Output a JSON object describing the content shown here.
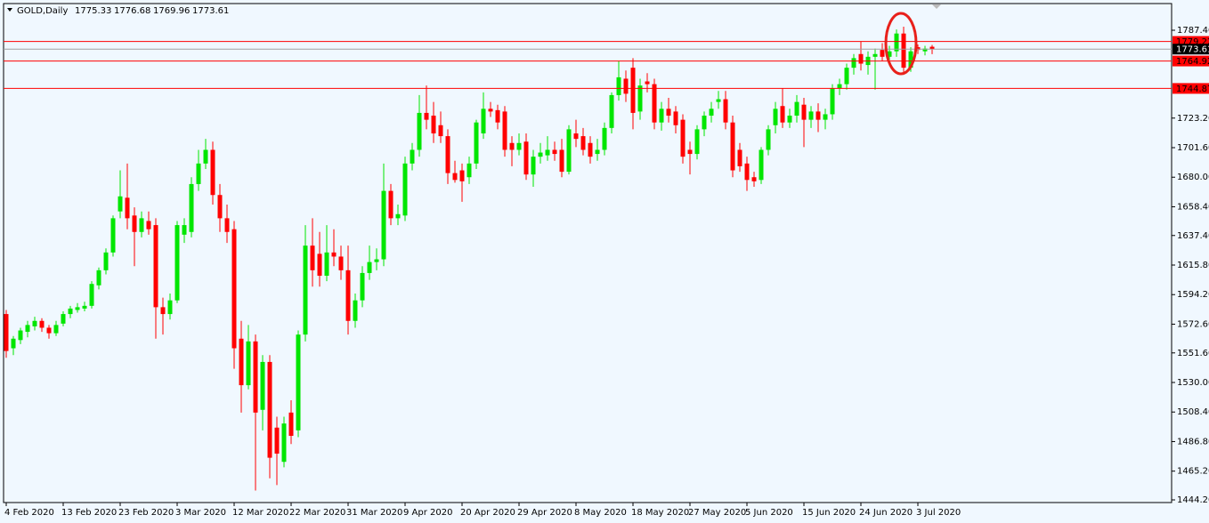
{
  "chart_data": {
    "type": "candlestick",
    "title": "GOLD,Daily",
    "categories": [
      "4 Feb 2020",
      null,
      null,
      null,
      null,
      null,
      null,
      null,
      "13 Feb 2020",
      null,
      null,
      null,
      null,
      null,
      null,
      null,
      "23 Feb 2020",
      null,
      null,
      null,
      null,
      null,
      null,
      null,
      "3 Mar 2020",
      null,
      null,
      null,
      null,
      null,
      null,
      null,
      "12 Mar 2020",
      null,
      null,
      null,
      null,
      null,
      null,
      null,
      "22 Mar 2020",
      null,
      null,
      null,
      null,
      null,
      null,
      null,
      "31 Mar 2020",
      null,
      null,
      null,
      null,
      null,
      null,
      null,
      "9 Apr 2020",
      null,
      null,
      null,
      null,
      null,
      null,
      null,
      "20 Apr 2020",
      null,
      null,
      null,
      null,
      null,
      null,
      null,
      "29 Apr 2020",
      null,
      null,
      null,
      null,
      null,
      null,
      null,
      "8 May 2020",
      null,
      null,
      null,
      null,
      null,
      null,
      null,
      "18 May 2020",
      null,
      null,
      null,
      null,
      null,
      null,
      null,
      "27 May 2020",
      null,
      null,
      null,
      null,
      null,
      null,
      null,
      "5 Jun 2020",
      null,
      null,
      null,
      null,
      null,
      null,
      null,
      "15 Jun 2020",
      null,
      null,
      null,
      null,
      null,
      null,
      null,
      "24 Jun 2020",
      null,
      null,
      null,
      null,
      null,
      null,
      null,
      "3 Jul 2020",
      null,
      null
    ],
    "open": [
      1580,
      1555,
      1561,
      1567,
      1571,
      1575,
      1570,
      1566,
      1573,
      1580,
      1583,
      1584,
      1586,
      1601,
      1612,
      1625,
      1655,
      1665,
      1652,
      1640,
      1648,
      1645,
      1585,
      1580,
      1590,
      1638,
      1640,
      1675,
      1690,
      1700,
      1667,
      1650,
      1642,
      1562,
      1528,
      1560,
      1510,
      1545,
      1497,
      1472,
      1508,
      1495,
      1565,
      1630,
      1624,
      1608,
      1625,
      1622,
      1612,
      1575,
      1590,
      1610,
      1618,
      1620,
      1670,
      1650,
      1652,
      1690,
      1700,
      1727,
      1725,
      1718,
      1710,
      1683,
      1685,
      1680,
      1690,
      1712,
      1730,
      1729,
      1728,
      1705,
      1700,
      1706,
      1682,
      1695,
      1696,
      1700,
      1700,
      1684,
      1712,
      1710,
      1705,
      1697,
      1700,
      1716,
      1740,
      1752,
      1760,
      1728,
      1750,
      1748,
      1720,
      1730,
      1728,
      1722,
      1700,
      1697,
      1715,
      1725,
      1735,
      1737,
      1720,
      1700,
      1690,
      1680,
      1678,
      1700,
      1718,
      1732,
      1720,
      1725,
      1733,
      1722,
      1728,
      1722,
      1726,
      1745,
      1748,
      1760,
      1770,
      1762,
      1768,
      1773,
      1768,
      1772,
      1785,
      1760,
      1775,
      1772,
      1775.33
    ],
    "high": [
      1583,
      1564,
      1570,
      1575,
      1578,
      1577,
      1572,
      1575,
      1582,
      1586,
      1588,
      1589,
      1604,
      1614,
      1628,
      1652,
      1685,
      1690,
      1658,
      1655,
      1655,
      1650,
      1592,
      1595,
      1648,
      1650,
      1680,
      1700,
      1708,
      1706,
      1675,
      1660,
      1648,
      1575,
      1572,
      1565,
      1550,
      1550,
      1505,
      1505,
      1517,
      1568,
      1645,
      1650,
      1640,
      1645,
      1642,
      1630,
      1630,
      1595,
      1615,
      1630,
      1628,
      1690,
      1675,
      1660,
      1695,
      1705,
      1740,
      1747,
      1735,
      1728,
      1715,
      1692,
      1690,
      1695,
      1722,
      1742,
      1735,
      1733,
      1732,
      1710,
      1712,
      1712,
      1700,
      1705,
      1710,
      1706,
      1708,
      1718,
      1722,
      1716,
      1710,
      1708,
      1720,
      1742,
      1765,
      1758,
      1767,
      1752,
      1756,
      1752,
      1735,
      1738,
      1732,
      1726,
      1706,
      1718,
      1728,
      1735,
      1743,
      1743,
      1725,
      1705,
      1695,
      1684,
      1702,
      1718,
      1735,
      1745,
      1730,
      1740,
      1738,
      1732,
      1734,
      1730,
      1748,
      1752,
      1763,
      1770,
      1779,
      1772,
      1774,
      1778,
      1776,
      1788,
      1790,
      1775,
      1777,
      1776,
      1776.68
    ],
    "low": [
      1548,
      1550,
      1558,
      1563,
      1568,
      1567,
      1562,
      1564,
      1571,
      1577,
      1581,
      1582,
      1584,
      1598,
      1609,
      1622,
      1650,
      1642,
      1615,
      1636,
      1638,
      1562,
      1565,
      1576,
      1588,
      1632,
      1636,
      1670,
      1686,
      1660,
      1640,
      1632,
      1540,
      1508,
      1525,
      1451,
      1495,
      1460,
      1455,
      1468,
      1485,
      1490,
      1560,
      1600,
      1600,
      1604,
      1615,
      1605,
      1565,
      1570,
      1585,
      1605,
      1612,
      1615,
      1645,
      1645,
      1648,
      1685,
      1695,
      1715,
      1705,
      1705,
      1675,
      1676,
      1662,
      1675,
      1686,
      1708,
      1724,
      1715,
      1695,
      1688,
      1696,
      1678,
      1673,
      1690,
      1692,
      1692,
      1680,
      1682,
      1702,
      1696,
      1690,
      1692,
      1696,
      1712,
      1736,
      1735,
      1715,
      1722,
      1742,
      1715,
      1714,
      1720,
      1712,
      1690,
      1682,
      1693,
      1710,
      1720,
      1730,
      1715,
      1680,
      1684,
      1670,
      1673,
      1675,
      1696,
      1712,
      1716,
      1716,
      1720,
      1702,
      1716,
      1713,
      1715,
      1722,
      1740,
      1744,
      1755,
      1758,
      1755,
      1744,
      1765,
      1762,
      1768,
      1755,
      1757,
      1770,
      1769,
      1769.96
    ],
    "close": [
      1553,
      1562,
      1568,
      1572,
      1575,
      1570,
      1566,
      1572,
      1580,
      1584,
      1585,
      1586,
      1602,
      1612,
      1625,
      1650,
      1666,
      1650,
      1640,
      1650,
      1642,
      1585,
      1580,
      1590,
      1645,
      1645,
      1675,
      1690,
      1700,
      1667,
      1650,
      1640,
      1555,
      1528,
      1560,
      1508,
      1545,
      1475,
      1478,
      1500,
      1491,
      1565,
      1630,
      1612,
      1608,
      1625,
      1622,
      1612,
      1575,
      1590,
      1610,
      1618,
      1620,
      1670,
      1650,
      1653,
      1690,
      1700,
      1727,
      1722,
      1712,
      1710,
      1683,
      1678,
      1677,
      1690,
      1720,
      1730,
      1728,
      1720,
      1700,
      1700,
      1705,
      1682,
      1695,
      1698,
      1700,
      1697,
      1684,
      1715,
      1708,
      1700,
      1695,
      1700,
      1716,
      1740,
      1753,
      1741,
      1727,
      1747,
      1748,
      1720,
      1730,
      1725,
      1718,
      1695,
      1697,
      1715,
      1725,
      1730,
      1737,
      1720,
      1685,
      1688,
      1678,
      1677,
      1700,
      1715,
      1730,
      1720,
      1725,
      1735,
      1722,
      1728,
      1722,
      1726,
      1745,
      1748,
      1760,
      1767,
      1763,
      1768,
      1770,
      1768,
      1772,
      1785,
      1760,
      1772,
      1773,
      1774,
      1773.61
    ],
    "up_color": "#00e600",
    "down_color": "#ff0000",
    "levels": [
      1779.22,
      1764.92,
      1744.87
    ],
    "level_color": "#ff0000",
    "ylim": [
      1442.25,
      1806.9
    ],
    "yticks": [
      {
        "value": 1787.4,
        "label": "1787.40"
      },
      {
        "value": 1723.2,
        "label": "1723.20"
      },
      {
        "value": 1701.6,
        "label": "1701.60"
      },
      {
        "value": 1680,
        "label": "1680.00"
      },
      {
        "value": 1658.4,
        "label": "1658.40"
      },
      {
        "value": 1637.4,
        "label": "1637.40"
      },
      {
        "value": 1615.8,
        "label": "1615.80"
      },
      {
        "value": 1594.2,
        "label": "1594.20"
      },
      {
        "value": 1572.6,
        "label": "1572.60"
      },
      {
        "value": 1551.6,
        "label": "1551.60"
      },
      {
        "value": 1530,
        "label": "1530.00"
      },
      {
        "value": 1508.4,
        "label": "1508.40"
      },
      {
        "value": 1486.8,
        "label": "1486.80"
      },
      {
        "value": 1465.2,
        "label": "1465.20"
      },
      {
        "value": 1444.2,
        "label": "1444.20"
      }
    ],
    "grid": false
  }
}
